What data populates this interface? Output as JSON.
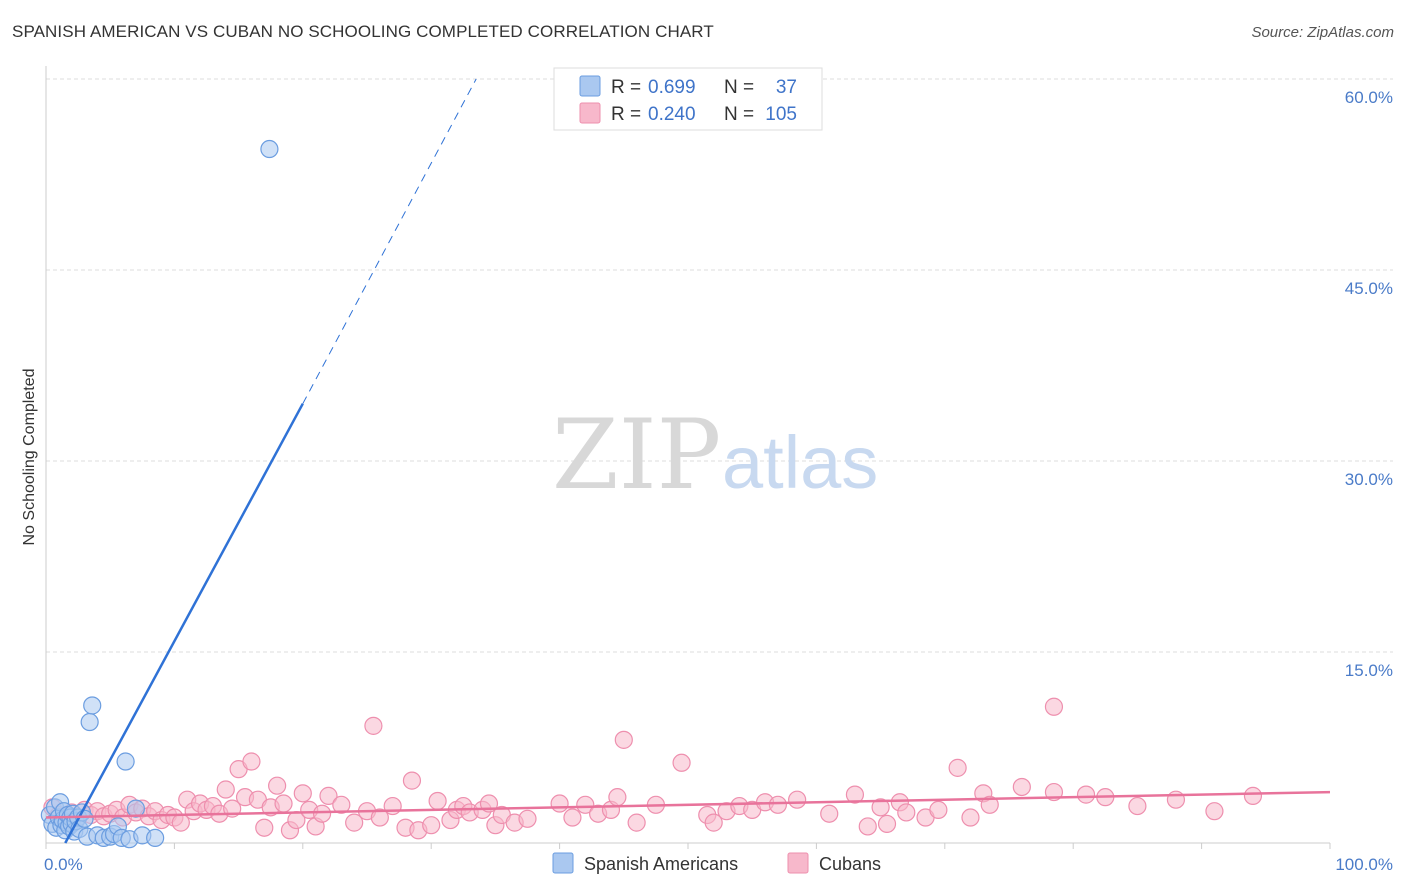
{
  "header": {
    "title": "SPANISH AMERICAN VS CUBAN NO SCHOOLING COMPLETED CORRELATION CHART",
    "source": "Source: ZipAtlas.com"
  },
  "watermark": {
    "part1": "ZIP",
    "part2": "atlas"
  },
  "colors": {
    "blue_fill": "#aac8f0",
    "blue_stroke": "#6b9de0",
    "blue_line": "#2f72d6",
    "pink_fill": "#f7b8cb",
    "pink_stroke": "#ee8fae",
    "pink_line": "#e8739b",
    "grid": "#dddddd",
    "tick_text": "#4a7bc8"
  },
  "legend": {
    "rows": [
      {
        "r_label": "R =",
        "r_value": "0.699",
        "n_label": "N =",
        "n_value": "37"
      },
      {
        "r_label": "R =",
        "r_value": "0.240",
        "n_label": "N =",
        "n_value": "105"
      }
    ]
  },
  "chart_data": {
    "type": "scatter",
    "title": "SPANISH AMERICAN VS CUBAN NO SCHOOLING COMPLETED CORRELATION CHART",
    "ylabel": "No Schooling Completed",
    "xlabel": "",
    "xlim": [
      0,
      100
    ],
    "ylim": [
      0,
      60
    ],
    "x_tick_labels": [
      "0.0%",
      "100.0%"
    ],
    "y_ticks": [
      15,
      30,
      45,
      60
    ],
    "y_tick_labels": [
      "15.0%",
      "30.0%",
      "45.0%",
      "60.0%"
    ],
    "legend_position": "bottom-center",
    "series": [
      {
        "name": "Spanish Americans",
        "r": 0.699,
        "n": 37,
        "trend": {
          "x0": 1.5,
          "y0": 0,
          "x1": 20,
          "y1": 34.5,
          "dash_to_x": 33.5,
          "dash_to_y": 60
        },
        "points": [
          [
            0.3,
            2.2
          ],
          [
            0.5,
            1.5
          ],
          [
            0.7,
            2.8
          ],
          [
            0.8,
            1.2
          ],
          [
            1.0,
            2.0
          ],
          [
            1.1,
            3.2
          ],
          [
            1.2,
            1.4
          ],
          [
            1.3,
            1.8
          ],
          [
            1.4,
            2.5
          ],
          [
            1.5,
            1.0
          ],
          [
            1.6,
            1.6
          ],
          [
            1.7,
            2.2
          ],
          [
            1.8,
            1.3
          ],
          [
            1.9,
            2.0
          ],
          [
            2.0,
            1.5
          ],
          [
            2.1,
            2.3
          ],
          [
            2.2,
            0.9
          ],
          [
            2.3,
            1.7
          ],
          [
            2.5,
            2.0
          ],
          [
            2.6,
            1.1
          ],
          [
            2.8,
            2.4
          ],
          [
            3.0,
            1.9
          ],
          [
            3.2,
            0.5
          ],
          [
            3.4,
            9.5
          ],
          [
            3.6,
            10.8
          ],
          [
            4.0,
            0.6
          ],
          [
            4.5,
            0.4
          ],
          [
            5.0,
            0.5
          ],
          [
            5.3,
            0.7
          ],
          [
            5.6,
            1.3
          ],
          [
            5.9,
            0.4
          ],
          [
            6.2,
            6.4
          ],
          [
            6.5,
            0.3
          ],
          [
            7.0,
            2.7
          ],
          [
            7.5,
            0.6
          ],
          [
            8.5,
            0.4
          ],
          [
            17.4,
            54.5
          ]
        ]
      },
      {
        "name": "Cubans",
        "r": 0.24,
        "n": 105,
        "trend": {
          "x0": 0,
          "y0": 2.0,
          "x1": 100,
          "y1": 4.0
        },
        "points": [
          [
            0.5,
            2.8
          ],
          [
            1.0,
            2.2
          ],
          [
            1.5,
            1.9
          ],
          [
            2.0,
            2.4
          ],
          [
            2.5,
            2.0
          ],
          [
            3.0,
            2.6
          ],
          [
            3.5,
            2.2
          ],
          [
            4.0,
            2.5
          ],
          [
            4.5,
            2.1
          ],
          [
            5.0,
            2.3
          ],
          [
            5.5,
            2.6
          ],
          [
            6.0,
            2.0
          ],
          [
            6.5,
            3.0
          ],
          [
            7.0,
            2.4
          ],
          [
            7.5,
            2.7
          ],
          [
            8.0,
            2.1
          ],
          [
            8.5,
            2.5
          ],
          [
            9.0,
            1.8
          ],
          [
            9.5,
            2.2
          ],
          [
            10.0,
            2.0
          ],
          [
            10.5,
            1.6
          ],
          [
            11.0,
            3.4
          ],
          [
            11.5,
            2.5
          ],
          [
            12.0,
            3.1
          ],
          [
            12.5,
            2.6
          ],
          [
            13.0,
            2.9
          ],
          [
            13.5,
            2.3
          ],
          [
            14.0,
            4.2
          ],
          [
            14.5,
            2.7
          ],
          [
            15.0,
            5.8
          ],
          [
            15.5,
            3.6
          ],
          [
            16.0,
            6.4
          ],
          [
            16.5,
            3.4
          ],
          [
            17.0,
            1.2
          ],
          [
            17.5,
            2.8
          ],
          [
            18.0,
            4.5
          ],
          [
            18.5,
            3.1
          ],
          [
            19.0,
            1.0
          ],
          [
            19.5,
            1.8
          ],
          [
            20.0,
            3.9
          ],
          [
            20.5,
            2.6
          ],
          [
            21.0,
            1.3
          ],
          [
            21.5,
            2.3
          ],
          [
            22.0,
            3.7
          ],
          [
            23.0,
            3.0
          ],
          [
            24.0,
            1.6
          ],
          [
            25.0,
            2.5
          ],
          [
            25.5,
            9.2
          ],
          [
            26.0,
            2.0
          ],
          [
            27.0,
            2.9
          ],
          [
            28.0,
            1.2
          ],
          [
            28.5,
            4.9
          ],
          [
            29.0,
            1.0
          ],
          [
            30.0,
            1.4
          ],
          [
            30.5,
            3.3
          ],
          [
            31.5,
            1.8
          ],
          [
            32.0,
            2.6
          ],
          [
            32.5,
            2.9
          ],
          [
            33.0,
            2.4
          ],
          [
            34.0,
            2.6
          ],
          [
            34.5,
            3.1
          ],
          [
            35.0,
            1.4
          ],
          [
            35.5,
            2.2
          ],
          [
            36.5,
            1.6
          ],
          [
            37.5,
            1.9
          ],
          [
            40.0,
            3.1
          ],
          [
            41.0,
            2.0
          ],
          [
            42.0,
            3.0
          ],
          [
            43.0,
            2.3
          ],
          [
            44.0,
            2.6
          ],
          [
            44.5,
            3.6
          ],
          [
            45.0,
            8.1
          ],
          [
            46.0,
            1.6
          ],
          [
            47.5,
            3.0
          ],
          [
            49.5,
            6.3
          ],
          [
            51.5,
            2.2
          ],
          [
            52.0,
            1.6
          ],
          [
            53.0,
            2.5
          ],
          [
            54.0,
            2.9
          ],
          [
            55.0,
            2.6
          ],
          [
            56.0,
            3.2
          ],
          [
            57.0,
            3.0
          ],
          [
            58.5,
            3.4
          ],
          [
            61.0,
            2.3
          ],
          [
            63.0,
            3.8
          ],
          [
            64.0,
            1.3
          ],
          [
            65.0,
            2.8
          ],
          [
            65.5,
            1.5
          ],
          [
            66.5,
            3.2
          ],
          [
            67.0,
            2.4
          ],
          [
            68.5,
            2.0
          ],
          [
            69.5,
            2.6
          ],
          [
            71.0,
            5.9
          ],
          [
            72.0,
            2.0
          ],
          [
            73.0,
            3.9
          ],
          [
            73.5,
            3.0
          ],
          [
            76.0,
            4.4
          ],
          [
            78.5,
            10.7
          ],
          [
            78.5,
            4.0
          ],
          [
            81.0,
            3.8
          ],
          [
            82.5,
            3.6
          ],
          [
            85.0,
            2.9
          ],
          [
            88.0,
            3.4
          ],
          [
            91.0,
            2.5
          ],
          [
            94.0,
            3.7
          ]
        ]
      }
    ]
  }
}
